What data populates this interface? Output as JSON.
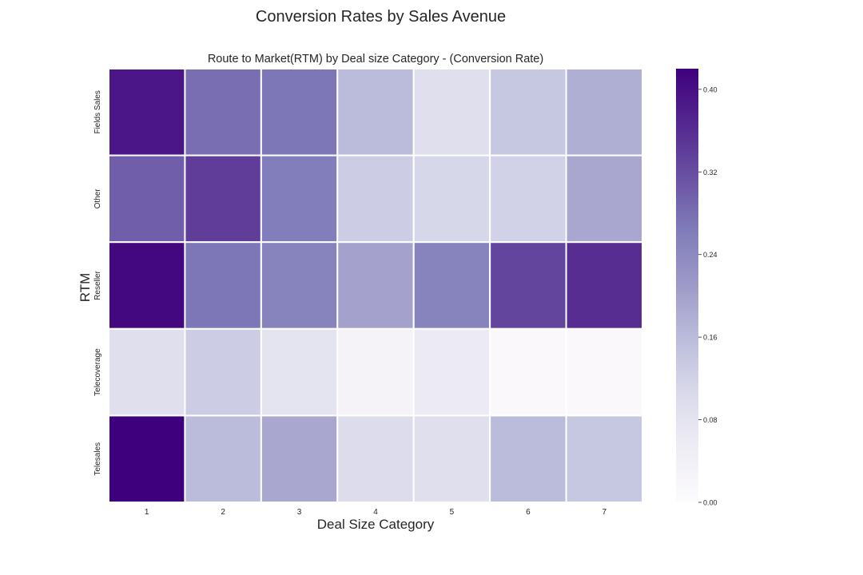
{
  "suptitle": "Conversion Rates by Sales Avenue",
  "chart_data": {
    "type": "heatmap",
    "title": "Route to Market(RTM) by Deal size Category - (Conversion Rate)",
    "xlabel": "Deal Size Category",
    "ylabel": "RTM",
    "x_categories": [
      "1",
      "2",
      "3",
      "4",
      "5",
      "6",
      "7"
    ],
    "y_categories": [
      "Fields Sales",
      "Other",
      "Reseller",
      "Telecoverage",
      "Telesales"
    ],
    "values": [
      [
        0.39,
        0.28,
        0.27,
        0.16,
        0.09,
        0.14,
        0.18
      ],
      [
        0.3,
        0.34,
        0.26,
        0.13,
        0.11,
        0.12,
        0.19
      ],
      [
        0.41,
        0.27,
        0.25,
        0.2,
        0.25,
        0.33,
        0.36
      ],
      [
        0.09,
        0.13,
        0.08,
        0.03,
        0.06,
        0.01,
        0.01
      ],
      [
        0.42,
        0.16,
        0.19,
        0.1,
        0.09,
        0.16,
        0.14
      ]
    ],
    "colormap": "Purples",
    "vmin": 0.0,
    "vmax": 0.42,
    "colorbar_ticks": [
      "0.00",
      "0.08",
      "0.16",
      "0.24",
      "0.32",
      "0.40"
    ]
  }
}
